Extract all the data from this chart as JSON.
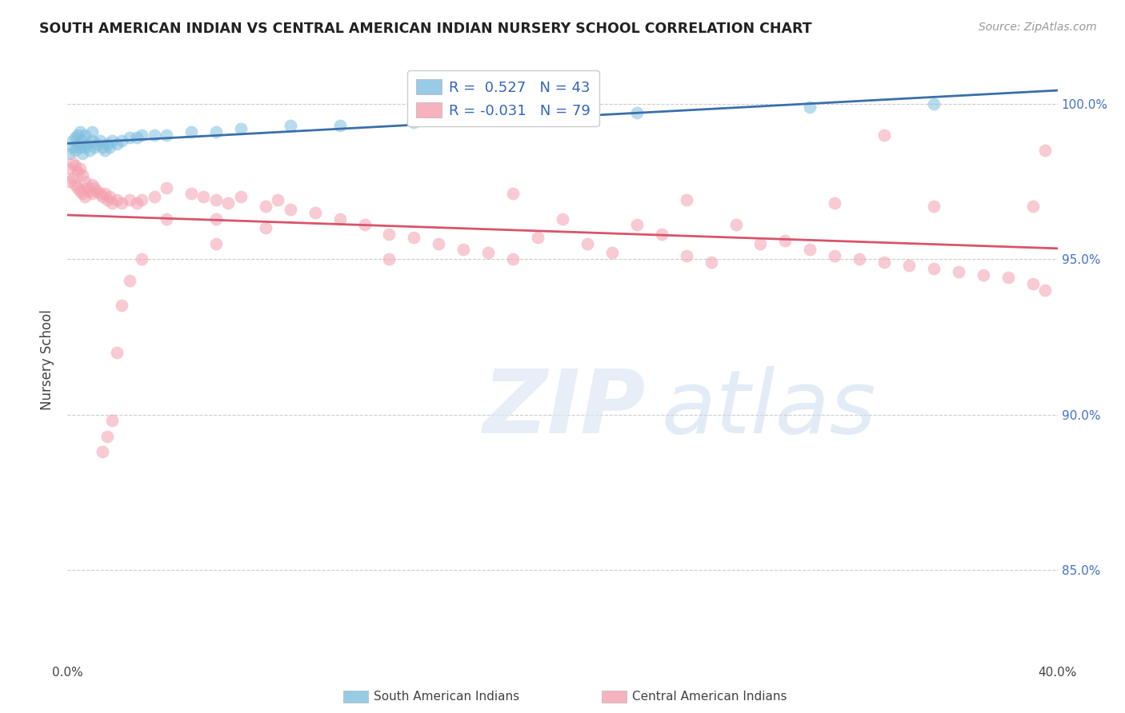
{
  "title": "SOUTH AMERICAN INDIAN VS CENTRAL AMERICAN INDIAN NURSERY SCHOOL CORRELATION CHART",
  "source": "Source: ZipAtlas.com",
  "ylabel": "Nursery School",
  "xlim": [
    0.0,
    0.4
  ],
  "ylim": [
    0.82,
    1.015
  ],
  "ytick_positions": [
    0.85,
    0.9,
    0.95,
    1.0
  ],
  "ytick_labels": [
    "85.0%",
    "90.0%",
    "95.0%",
    "100.0%"
  ],
  "xtick_positions": [
    0.0,
    0.05,
    0.1,
    0.15,
    0.2,
    0.25,
    0.3,
    0.35,
    0.4
  ],
  "xtick_labels": [
    "0.0%",
    "",
    "",
    "",
    "",
    "",
    "",
    "",
    "40.0%"
  ],
  "blue_R": 0.527,
  "blue_N": 43,
  "pink_R": -0.031,
  "pink_N": 79,
  "blue_color": "#7fbfdf",
  "pink_color": "#f4a0b0",
  "blue_line_color": "#3a6faa",
  "pink_line_color": "#d9546a",
  "legend_label_blue": "South American Indians",
  "legend_label_pink": "Central American Indians",
  "blue_x": [
    0.001,
    0.002,
    0.002,
    0.003,
    0.003,
    0.004,
    0.004,
    0.005,
    0.005,
    0.006,
    0.006,
    0.007,
    0.007,
    0.008,
    0.009,
    0.01,
    0.01,
    0.011,
    0.012,
    0.013,
    0.014,
    0.015,
    0.016,
    0.017,
    0.018,
    0.02,
    0.022,
    0.025,
    0.028,
    0.03,
    0.035,
    0.04,
    0.05,
    0.06,
    0.07,
    0.09,
    0.11,
    0.14,
    0.17,
    0.2,
    0.23,
    0.3,
    0.35
  ],
  "blue_y": [
    0.984,
    0.986,
    0.988,
    0.985,
    0.989,
    0.987,
    0.99,
    0.986,
    0.991,
    0.984,
    0.988,
    0.986,
    0.99,
    0.987,
    0.985,
    0.988,
    0.991,
    0.986,
    0.987,
    0.988,
    0.986,
    0.985,
    0.987,
    0.986,
    0.988,
    0.987,
    0.988,
    0.989,
    0.989,
    0.99,
    0.99,
    0.99,
    0.991,
    0.991,
    0.992,
    0.993,
    0.993,
    0.994,
    0.995,
    0.997,
    0.997,
    0.999,
    1.0
  ],
  "pink_x": [
    0.001,
    0.001,
    0.002,
    0.002,
    0.003,
    0.003,
    0.004,
    0.004,
    0.005,
    0.005,
    0.006,
    0.006,
    0.007,
    0.007,
    0.008,
    0.009,
    0.01,
    0.01,
    0.011,
    0.012,
    0.013,
    0.014,
    0.015,
    0.016,
    0.017,
    0.018,
    0.02,
    0.022,
    0.025,
    0.028,
    0.03,
    0.035,
    0.04,
    0.05,
    0.055,
    0.06,
    0.065,
    0.07,
    0.08,
    0.085,
    0.09,
    0.1,
    0.11,
    0.12,
    0.13,
    0.14,
    0.15,
    0.16,
    0.17,
    0.18,
    0.19,
    0.2,
    0.21,
    0.22,
    0.23,
    0.24,
    0.25,
    0.26,
    0.27,
    0.28,
    0.29,
    0.3,
    0.31,
    0.32,
    0.33,
    0.34,
    0.35,
    0.36,
    0.37,
    0.38,
    0.39,
    0.395,
    0.06,
    0.13,
    0.18,
    0.25,
    0.31,
    0.35,
    0.39
  ],
  "pink_y": [
    0.979,
    0.975,
    0.981,
    0.976,
    0.98,
    0.974,
    0.978,
    0.973,
    0.979,
    0.972,
    0.977,
    0.971,
    0.975,
    0.97,
    0.973,
    0.972,
    0.974,
    0.971,
    0.973,
    0.972,
    0.971,
    0.97,
    0.971,
    0.969,
    0.97,
    0.968,
    0.969,
    0.968,
    0.969,
    0.968,
    0.969,
    0.97,
    0.973,
    0.971,
    0.97,
    0.969,
    0.968,
    0.97,
    0.967,
    0.969,
    0.966,
    0.965,
    0.963,
    0.961,
    0.958,
    0.957,
    0.955,
    0.953,
    0.952,
    0.95,
    0.957,
    0.963,
    0.955,
    0.952,
    0.961,
    0.958,
    0.951,
    0.949,
    0.961,
    0.955,
    0.956,
    0.953,
    0.951,
    0.95,
    0.949,
    0.948,
    0.947,
    0.946,
    0.945,
    0.944,
    0.942,
    0.94,
    0.963,
    0.95,
    0.971,
    0.969,
    0.968,
    0.967,
    0.967
  ],
  "pink_y_override": [
    [
      0.33,
      0.99
    ],
    [
      0.395,
      0.985
    ],
    [
      0.08,
      0.96
    ],
    [
      0.06,
      0.955
    ],
    [
      0.04,
      0.963
    ],
    [
      0.03,
      0.95
    ],
    [
      0.025,
      0.943
    ],
    [
      0.022,
      0.935
    ],
    [
      0.02,
      0.92
    ],
    [
      0.018,
      0.898
    ],
    [
      0.016,
      0.893
    ],
    [
      0.014,
      0.888
    ]
  ]
}
